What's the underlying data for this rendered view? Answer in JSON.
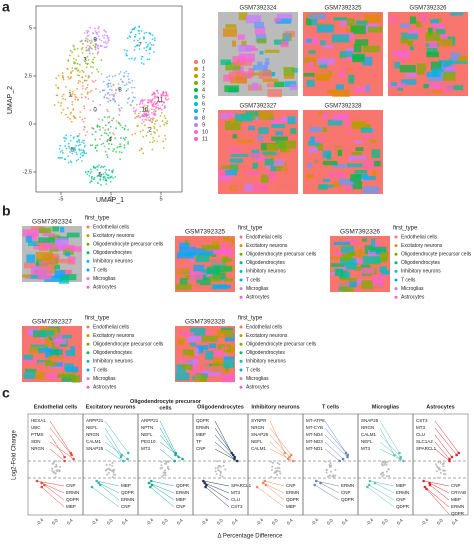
{
  "panels": {
    "a": {
      "label": "a",
      "umap": {
        "x_label": "UMAP_1",
        "y_label": "UMAP_2",
        "xticks": [
          "-5",
          "0",
          "5"
        ],
        "yticks": [
          "5",
          "2.5",
          "0",
          "-2.5"
        ]
      },
      "clusters": [
        "0",
        "1",
        "2",
        "3",
        "4",
        "5",
        "6",
        "7",
        "8",
        "9",
        "10",
        "11"
      ],
      "cluster_colors": [
        "#F8766D",
        "#DE8C00",
        "#B79F00",
        "#7CAE00",
        "#00BA38",
        "#00C08B",
        "#00BFC4",
        "#00B4F0",
        "#619CFF",
        "#C77CFF",
        "#F564E3",
        "#FF64B0"
      ],
      "samples": [
        "GSM7392324",
        "GSM7392325",
        "GSM7392326",
        "GSM7392327",
        "GSM7392328"
      ]
    },
    "b": {
      "label": "b",
      "legend_title": "first_type",
      "cell_types": [
        "Endothelial cells",
        "Excitatory neurons",
        "Oligodendrocyte precursor cells",
        "Oligodendrocytes",
        "Inhibitory neurons",
        "T cells",
        "Microglias",
        "Astrocytes"
      ],
      "cell_type_colors": [
        "#F8766D",
        "#CD9600",
        "#7CAE00",
        "#00BE67",
        "#00BFC4",
        "#00A9FF",
        "#C77CFF",
        "#FF61CC"
      ],
      "samples": [
        "GSM7392324",
        "GSM7392325",
        "GSM7392326",
        "GSM7392327",
        "GSM7392328"
      ]
    },
    "c": {
      "label": "c",
      "y_label": "Log2-Fold Change",
      "x_label": "Δ Percentage Difference",
      "xticks": [
        "-0.4",
        "0.0",
        "0.4"
      ],
      "facets": [
        {
          "title": "Endothelial cells",
          "color": "#e8473c",
          "up": [
            "HEXA1",
            "UBC",
            "PTMS",
            "SDN",
            "NRGN"
          ],
          "down": [
            "CNP",
            "ERMN",
            "QDPR",
            "MBP"
          ]
        },
        {
          "title": "Excitatory neurons",
          "color": "#40b7ad",
          "up": [
            "ARPP21",
            "NEFL",
            "NRGN",
            "CALM1",
            "SNAP25"
          ],
          "down": [
            "MBP",
            "QDPR",
            "ERMN",
            "CNP"
          ]
        },
        {
          "title": "Oligodendrocyte precursor cells",
          "color": "#1aa89a",
          "up": [
            "ARPP21",
            "NPTN",
            "NEFL",
            "PEG10",
            "MT3"
          ],
          "down": [
            "QDPR",
            "ERMN",
            "MBP",
            "CNP"
          ]
        },
        {
          "title": "Oligodendrocytes",
          "color": "#23335e",
          "up": [
            "QDPR",
            "ERMN",
            "MBP",
            "TF",
            "CNP"
          ],
          "down": [
            "SPARCL1",
            "MT3",
            "CLU",
            "CST3"
          ]
        },
        {
          "title": "Inhibitory neurons",
          "color": "#f08a5a",
          "up": [
            "SYNPR",
            "NRGN",
            "SNAP25",
            "NEFL",
            "CALM1"
          ],
          "down": [
            "CNP",
            "ERMN",
            "QDPR",
            "MBP"
          ]
        },
        {
          "title": "T cells",
          "color": "#6f7fb8",
          "up": [
            "MT-ATP8",
            "MT-CYB",
            "MT-ND4",
            "MT-ND3",
            "MT-ND1"
          ],
          "down": [
            "ERMN",
            "CNP",
            "QDPR"
          ]
        },
        {
          "title": "Microglias",
          "color": "#5cc1b3",
          "up": [
            "SNAP25",
            "NRGN",
            "CALM1",
            "NEFL",
            "MT3"
          ],
          "down": [
            "MBP",
            "ERMN",
            "CNP",
            "QDPR"
          ]
        },
        {
          "title": "Astrocytes",
          "color": "#e0242a",
          "up": [
            "CST3",
            "MT3",
            "CLU",
            "SLC1A2",
            "SPARCL1"
          ],
          "down": [
            "CNP",
            "CRYAB",
            "MBP",
            "ERMN",
            "QDPR"
          ]
        }
      ]
    }
  }
}
